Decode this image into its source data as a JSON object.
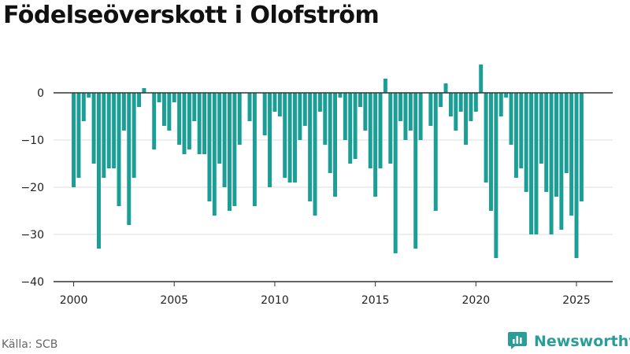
{
  "title": "Födelseöverskott i Olofström",
  "source": "Källa: SCB",
  "brand": {
    "name": "Newsworthy",
    "icon": "bar-chart-icon",
    "color": "#2a9d97"
  },
  "chart_data": {
    "type": "bar",
    "color": "#1a9e96",
    "x_unit": "quarter",
    "x_start": "2000 Q1",
    "x_end": "2025 Q2",
    "xlim": [
      1999,
      2026.8
    ],
    "ylim": [
      -40,
      8
    ],
    "y_ticks": [
      0,
      -10,
      -20,
      -30,
      -40
    ],
    "y_tick_labels": [
      "0",
      "−10",
      "−20",
      "−30",
      "−40"
    ],
    "x_ticks": [
      2000,
      2005,
      2010,
      2015,
      2020,
      2025
    ],
    "x_tick_labels": [
      "2000",
      "2005",
      "2010",
      "2015",
      "2020",
      "2025"
    ],
    "grid": true,
    "values": [
      -20,
      -18,
      -6,
      -1,
      -15,
      -33,
      -18,
      -16,
      -16,
      -24,
      -8,
      -28,
      -18,
      -3,
      1,
      0,
      -12,
      -2,
      -7,
      -8,
      -2,
      -11,
      -13,
      -12,
      -6,
      -13,
      -13,
      -23,
      -26,
      -15,
      -20,
      -25,
      -24,
      -11,
      0,
      -6,
      -24,
      0,
      -9,
      -20,
      -4,
      -5,
      -18,
      -19,
      -19,
      -10,
      -7,
      -23,
      -26,
      -4,
      -11,
      -17,
      -22,
      -1,
      -10,
      -15,
      -14,
      -3,
      -8,
      -16,
      -22,
      -16,
      3,
      -15,
      -34,
      -6,
      -10,
      -8,
      -33,
      -10,
      0,
      -7,
      -25,
      -3,
      2,
      -5,
      -8,
      -4,
      -11,
      -6,
      -4,
      6,
      -19,
      -25,
      -35,
      -5,
      -1,
      -11,
      -18,
      -16,
      -21,
      -30,
      -30,
      -15,
      -21,
      -30,
      -22,
      -29,
      -17,
      -26,
      -35,
      -23
    ]
  }
}
